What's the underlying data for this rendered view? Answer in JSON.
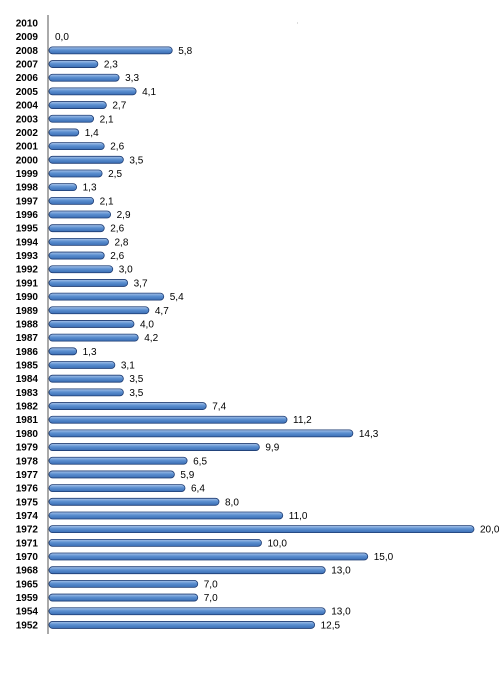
{
  "chart_data": {
    "type": "bar",
    "orientation": "horizontal",
    "title": "",
    "xlabel": "",
    "ylabel": "",
    "xlim": [
      0,
      20
    ],
    "grid": false,
    "legend": "none",
    "colors": {
      "bar": "#4f81bd",
      "bar_light": "#8db3e2",
      "bar_edge": "#1f3d73",
      "axis": "#555555",
      "label": "#000000"
    },
    "categories": [
      "2010",
      "2009",
      "2008",
      "2007",
      "2006",
      "2005",
      "2004",
      "2003",
      "2002",
      "2001",
      "2000",
      "1999",
      "1998",
      "1997",
      "1996",
      "1995",
      "1994",
      "1993",
      "1992",
      "1991",
      "1990",
      "1989",
      "1988",
      "1987",
      "1986",
      "1985",
      "1984",
      "1983",
      "1982",
      "1981",
      "1980",
      "1979",
      "1978",
      "1977",
      "1976",
      "1975",
      "1974",
      "1972",
      "1971",
      "1970",
      "1968",
      "1965",
      "1959",
      "1954",
      "1952"
    ],
    "values": [
      null,
      0.0,
      5.8,
      2.3,
      3.3,
      4.1,
      2.7,
      2.1,
      1.4,
      2.6,
      3.5,
      2.5,
      1.3,
      2.1,
      2.9,
      2.6,
      2.8,
      2.6,
      3.0,
      3.7,
      5.4,
      4.7,
      4.0,
      4.2,
      1.3,
      3.1,
      3.5,
      3.5,
      7.4,
      11.2,
      14.3,
      9.9,
      6.5,
      5.9,
      6.4,
      8.0,
      11.0,
      20.0,
      10.0,
      15.0,
      13.0,
      7.0,
      7.0,
      13.0,
      12.5
    ],
    "data_labels": [
      "",
      "0,0",
      "5,8",
      "2,3",
      "3,3",
      "4,1",
      "2,7",
      "2,1",
      "1,4",
      "2,6",
      "3,5",
      "2,5",
      "1,3",
      "2,1",
      "2,9",
      "2,6",
      "2,8",
      "2,6",
      "3,0",
      "3,7",
      "5,4",
      "4,7",
      "4,0",
      "4,2",
      "1,3",
      "3,1",
      "3,5",
      "3,5",
      "7,4",
      "11,2",
      "14,3",
      "9,9",
      "6,5",
      "5,9",
      "6,4",
      "8,0",
      "11,0",
      "20,0",
      "10,0",
      "15,0",
      "13,0",
      "7,0",
      "7,0",
      "13,0",
      "12,5"
    ]
  }
}
